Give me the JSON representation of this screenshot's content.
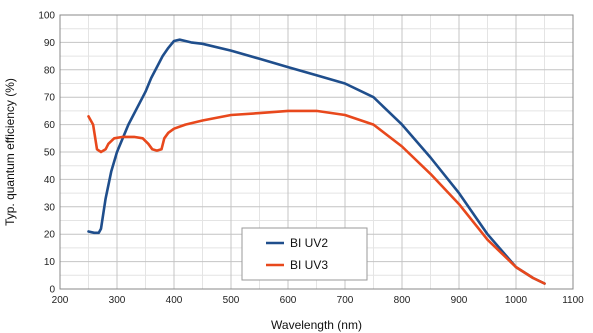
{
  "chart_data": {
    "type": "line",
    "title": "",
    "xlabel": "Wavelength (nm)",
    "ylabel": "Typ. quantum efficiency (%)",
    "xlim": [
      200,
      1100
    ],
    "ylim": [
      0,
      100
    ],
    "x_ticks": [
      200,
      300,
      400,
      500,
      600,
      700,
      800,
      900,
      1000,
      1100
    ],
    "y_ticks": [
      0,
      10,
      20,
      30,
      40,
      50,
      60,
      70,
      80,
      90,
      100
    ],
    "grid": true,
    "legend_position": "bottom-center",
    "series": [
      {
        "name": "BI UV2",
        "color": "#1f4e8c",
        "points": [
          [
            250,
            21
          ],
          [
            260,
            20.5
          ],
          [
            268,
            20.5
          ],
          [
            272,
            22
          ],
          [
            280,
            33
          ],
          [
            290,
            43
          ],
          [
            300,
            50
          ],
          [
            320,
            60
          ],
          [
            340,
            68
          ],
          [
            350,
            72
          ],
          [
            360,
            77
          ],
          [
            370,
            81
          ],
          [
            380,
            85
          ],
          [
            390,
            88
          ],
          [
            400,
            90.5
          ],
          [
            410,
            91
          ],
          [
            420,
            90.5
          ],
          [
            430,
            90
          ],
          [
            450,
            89.5
          ],
          [
            500,
            87
          ],
          [
            550,
            84
          ],
          [
            600,
            81
          ],
          [
            650,
            78
          ],
          [
            700,
            75
          ],
          [
            750,
            70
          ],
          [
            800,
            60
          ],
          [
            850,
            48
          ],
          [
            900,
            35
          ],
          [
            950,
            20
          ],
          [
            1000,
            8
          ],
          [
            1030,
            4
          ],
          [
            1050,
            2
          ]
        ]
      },
      {
        "name": "BI UV3",
        "color": "#e8481c",
        "points": [
          [
            250,
            63
          ],
          [
            258,
            60
          ],
          [
            265,
            51
          ],
          [
            272,
            50
          ],
          [
            280,
            51
          ],
          [
            285,
            53
          ],
          [
            295,
            55
          ],
          [
            310,
            55.5
          ],
          [
            330,
            55.5
          ],
          [
            345,
            55
          ],
          [
            355,
            53
          ],
          [
            362,
            51
          ],
          [
            370,
            50.5
          ],
          [
            378,
            51
          ],
          [
            383,
            55
          ],
          [
            390,
            57
          ],
          [
            400,
            58.5
          ],
          [
            420,
            60
          ],
          [
            450,
            61.5
          ],
          [
            500,
            63.5
          ],
          [
            550,
            64.2
          ],
          [
            600,
            65
          ],
          [
            650,
            65
          ],
          [
            700,
            63.5
          ],
          [
            750,
            60
          ],
          [
            800,
            52
          ],
          [
            850,
            42
          ],
          [
            900,
            31
          ],
          [
            950,
            18
          ],
          [
            1000,
            8
          ],
          [
            1030,
            4
          ],
          [
            1050,
            2
          ]
        ]
      }
    ]
  }
}
